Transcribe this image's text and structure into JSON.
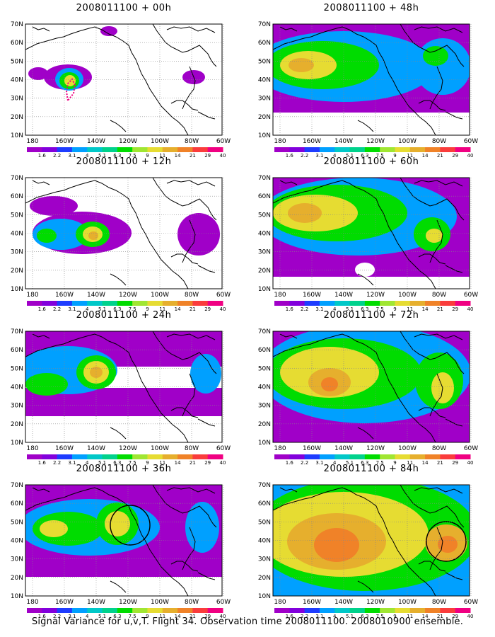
{
  "panels": [
    {
      "title": "2008011100 + 00h",
      "col": 0,
      "row": 0,
      "level": 0
    },
    {
      "title": "2008011100 + 12h",
      "col": 0,
      "row": 1,
      "level": 1
    },
    {
      "title": "2008011100 + 24h",
      "col": 0,
      "row": 2,
      "level": 2
    },
    {
      "title": "2008011100 + 36h",
      "col": 0,
      "row": 3,
      "level": 3
    },
    {
      "title": "2008011100 + 48h",
      "col": 1,
      "row": 0,
      "level": 4
    },
    {
      "title": "2008011100 + 60h",
      "col": 1,
      "row": 1,
      "level": 5
    },
    {
      "title": "2008011100 + 72h",
      "col": 1,
      "row": 2,
      "level": 6
    },
    {
      "title": "2008011100 + 84h",
      "col": 1,
      "row": 3,
      "level": 7
    }
  ],
  "lat_labels": [
    "70N",
    "60N",
    "50N",
    "40N",
    "30N",
    "20N",
    "10N"
  ],
  "lon_labels": [
    "180",
    "160W",
    "140W",
    "120W",
    "100W",
    "80W",
    "60W"
  ],
  "colorbar": {
    "labels": [
      "1.6",
      "2.2",
      "3.1",
      "4",
      "5.1",
      "6.3",
      "7.5",
      "9",
      "11",
      "14",
      "21",
      "29",
      "40"
    ],
    "colors": [
      "#a000c8",
      "#8200dc",
      "#1e3cff",
      "#00a0ff",
      "#00c8c8",
      "#00d28c",
      "#00dc00",
      "#a0e632",
      "#e6dc32",
      "#e6af2d",
      "#f08228",
      "#fa3c3c",
      "#f00082"
    ]
  },
  "caption": "Signal Variance for u,v,T. Flight 34. Observation time 2008011100. 2008010900 ensemble."
}
